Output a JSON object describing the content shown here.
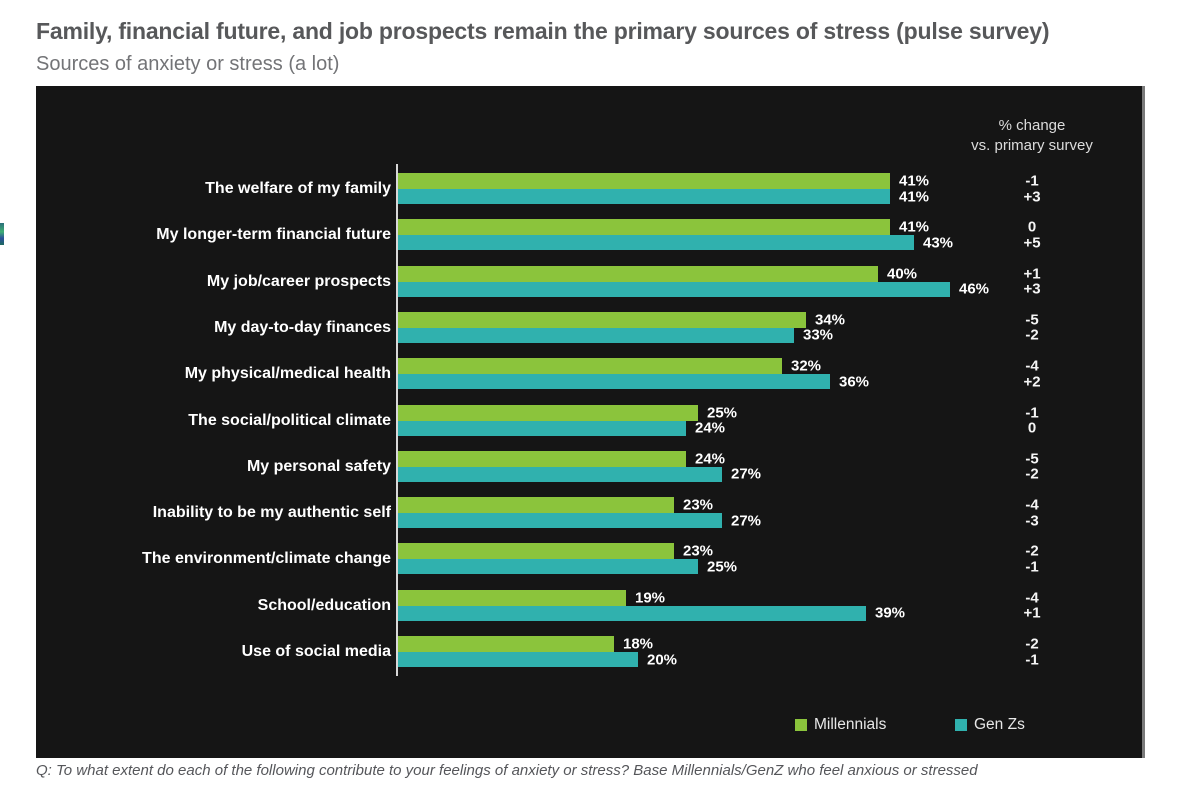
{
  "page": {
    "title": "Family, financial future, and job prospects remain the primary sources of stress (pulse survey)",
    "subtitle": "Sources of anxiety or stress (a lot)",
    "footnote": "Q: To what extent do each of the following contribute to your feelings of anxiety or stress? Base Millennials/GenZ who feel anxious or stressed"
  },
  "colors": {
    "millennials": "#8bc43c",
    "genzs": "#30b1ae",
    "panel_background": "#151515",
    "value_text": "#ffffff",
    "title_text": "#57585a"
  },
  "chart_data": {
    "type": "bar",
    "orientation": "horizontal",
    "title": "Sources of anxiety or stress (a lot)",
    "value_suffix": "%",
    "xlim": [
      0,
      48
    ],
    "grid": false,
    "legend_position": "bottom-right",
    "change_header_line1": "% change",
    "change_header_line2": "vs. primary survey",
    "categories": [
      "The welfare of my family",
      "My longer-term financial future",
      "My job/career prospects",
      "My day-to-day finances",
      "My physical/medical health",
      "The social/political climate",
      "My personal safety",
      "Inability to be my authentic self",
      "The environment/climate change",
      "School/education",
      "Use of social media"
    ],
    "series": [
      {
        "name": "Millennials",
        "color_key": "millennials",
        "values": [
          41,
          41,
          40,
          34,
          32,
          25,
          24,
          23,
          23,
          19,
          18
        ],
        "changes": [
          "-1",
          "0",
          "+1",
          "-5",
          "-4",
          "-1",
          "-5",
          "-4",
          "-2",
          "-4",
          "-2"
        ]
      },
      {
        "name": "Gen Zs",
        "color_key": "genzs",
        "values": [
          41,
          43,
          46,
          33,
          36,
          24,
          27,
          27,
          25,
          39,
          20
        ],
        "changes": [
          "+3",
          "+5",
          "+3",
          "-2",
          "+2",
          "0",
          "-2",
          "-3",
          "-1",
          "+1",
          "-1"
        ]
      }
    ],
    "legend": [
      {
        "label": "Millennials"
      },
      {
        "label": "Gen Zs"
      }
    ]
  }
}
